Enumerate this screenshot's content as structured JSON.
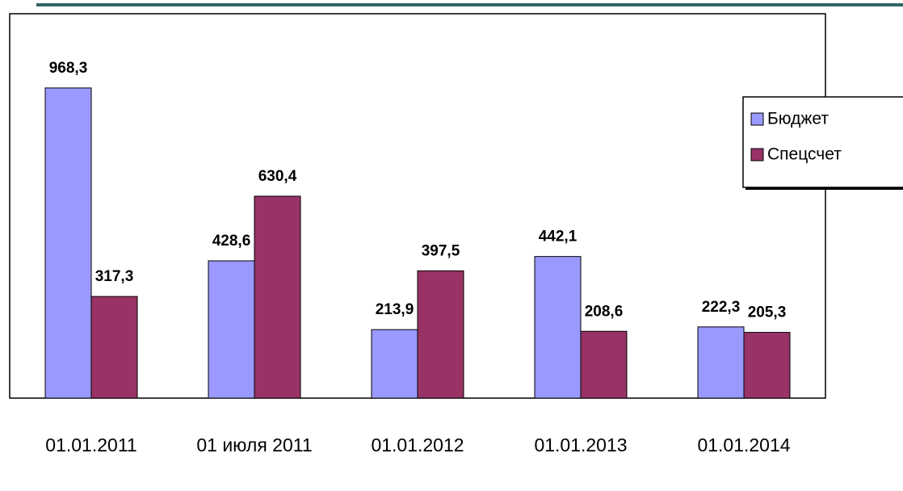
{
  "chart_data": {
    "type": "bar",
    "categories": [
      "01.01.2011",
      "01 июля 2011",
      "01.01.2012",
      "01.01.2013",
      "01.01.2014"
    ],
    "series": [
      {
        "name": "Бюджет",
        "color": "#9999ff",
        "values": [
          968.3,
          428.6,
          213.9,
          442.1,
          222.3
        ],
        "value_labels": [
          "968,3",
          "428,6",
          "213,9",
          "442,1",
          "222,3"
        ]
      },
      {
        "name": "Спецсчет",
        "color": "#993366",
        "values": [
          317.3,
          630.4,
          397.5,
          208.6,
          205.3
        ],
        "value_labels": [
          "317,3",
          "630,4",
          "397,5",
          "208,6",
          "205,3"
        ]
      }
    ],
    "ylim": [
      0,
      1200
    ],
    "legend": "right"
  }
}
